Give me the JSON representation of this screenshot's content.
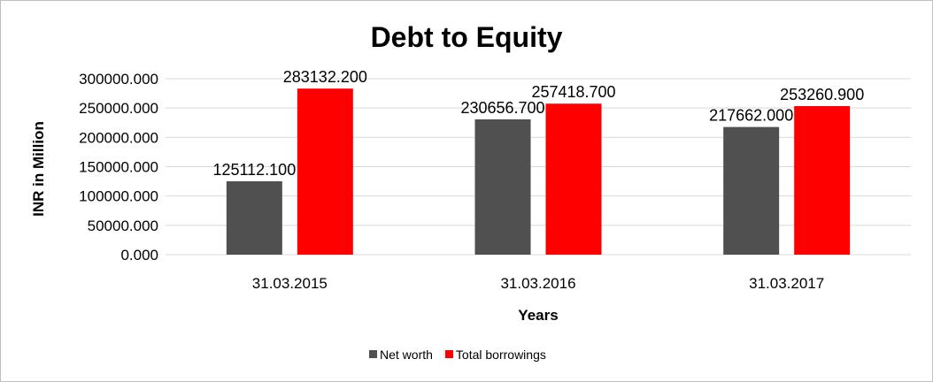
{
  "chart_data": {
    "type": "bar",
    "title": "Debt to Equity",
    "xlabel": "Years",
    "ylabel": "INR in Million",
    "categories": [
      "31.03.2015",
      "31.03.2016",
      "31.03.2017"
    ],
    "series": [
      {
        "name": "Net worth",
        "color": "#505050",
        "values": [
          125112.1,
          230656.7,
          217662.0
        ],
        "labels": [
          "125112.100",
          "230656.700",
          "217662.000"
        ]
      },
      {
        "name": "Total borrowings",
        "color": "#ff0000",
        "values": [
          283132.2,
          257418.7,
          253260.9
        ],
        "labels": [
          "283132.200",
          "257418.700",
          "253260.900"
        ]
      }
    ],
    "ylim": [
      0,
      300000
    ],
    "yticks": [
      {
        "value": 0,
        "label": "0.000"
      },
      {
        "value": 50000,
        "label": "50000.000"
      },
      {
        "value": 100000,
        "label": "100000.000"
      },
      {
        "value": 150000,
        "label": "150000.000"
      },
      {
        "value": 200000,
        "label": "200000.000"
      },
      {
        "value": 250000,
        "label": "250000.000"
      },
      {
        "value": 300000,
        "label": "300000.000"
      }
    ],
    "grid": true,
    "legend_position": "bottom"
  }
}
